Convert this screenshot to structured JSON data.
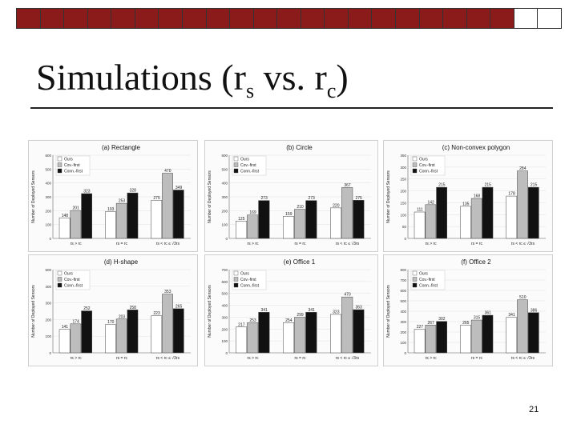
{
  "slide": {
    "title_main": "Simulations (r",
    "title_sub1": "s",
    "title_mid": " vs. r",
    "title_sub2": "c",
    "title_end": ")",
    "page_number": "21"
  },
  "colors": {
    "bar_dark": "#8b1a1a",
    "ours": "#ffffff",
    "cov": "#bdbdbd",
    "conn": "#111111"
  },
  "legend": [
    "Ours",
    "Cov.-first",
    "Conn.-first"
  ],
  "ylabel": "Number of Deployed Sensors",
  "chart_data": [
    {
      "type": "bar",
      "title": "(a) Rectangle",
      "categories": [
        "rs > rc",
        "rs = rc",
        "rs < rc ≤ √3rs"
      ],
      "ylim": [
        0,
        600
      ],
      "ticks": [
        0,
        100,
        200,
        300,
        400,
        500,
        600
      ],
      "series": [
        {
          "name": "Ours",
          "values": [
            148,
            193,
            275
          ]
        },
        {
          "name": "Cov.-first",
          "values": [
            201,
            253,
            470
          ]
        },
        {
          "name": "Conn.-first",
          "values": [
            323,
            328,
            349
          ]
        }
      ]
    },
    {
      "type": "bar",
      "title": "(b) Circle",
      "categories": [
        "rs > rc",
        "rs = rc",
        "rs < rc ≤ √3rs"
      ],
      "ylim": [
        0,
        600
      ],
      "ticks": [
        0,
        100,
        200,
        300,
        400,
        500,
        600
      ],
      "series": [
        {
          "name": "Ours",
          "values": [
            125,
            159,
            220
          ]
        },
        {
          "name": "Cov.-first",
          "values": [
            169,
            210,
            367
          ]
        },
        {
          "name": "Conn.-first",
          "values": [
            273,
            273,
            275
          ]
        }
      ]
    },
    {
      "type": "bar",
      "title": "(c) Non-convex polygon",
      "categories": [
        "rs > rc",
        "rs = rc",
        "rs < rc ≤ √3rs"
      ],
      "ylim": [
        0,
        350
      ],
      "ticks": [
        0,
        50,
        100,
        150,
        200,
        250,
        300,
        350
      ],
      "series": [
        {
          "name": "Ours",
          "values": [
            111,
            135,
            178
          ]
        },
        {
          "name": "Cov.-first",
          "values": [
            142,
            168,
            284
          ]
        },
        {
          "name": "Conn.-first",
          "values": [
            215,
            215,
            215
          ]
        }
      ]
    },
    {
      "type": "bar",
      "title": "(d) H-shape",
      "categories": [
        "rs > rc",
        "rs = rc",
        "rs < rc ≤ √3rs"
      ],
      "ylim": [
        0,
        500
      ],
      "ticks": [
        0,
        100,
        200,
        300,
        400,
        500
      ],
      "series": [
        {
          "name": "Ours",
          "values": [
            141,
            170,
            223
          ]
        },
        {
          "name": "Cov.-first",
          "values": [
            174,
            203,
            353
          ]
        },
        {
          "name": "Conn.-first",
          "values": [
            252,
            258,
            265
          ]
        }
      ]
    },
    {
      "type": "bar",
      "title": "(e) Office 1",
      "categories": [
        "rs > rc",
        "rs = rc",
        "rs < rc ≤ √3rs"
      ],
      "ylim": [
        0,
        700
      ],
      "ticks": [
        0,
        100,
        200,
        300,
        400,
        500,
        600,
        700
      ],
      "series": [
        {
          "name": "Ours",
          "values": [
            217,
            254,
            323
          ]
        },
        {
          "name": "Cov.-first",
          "values": [
            253,
            299,
            470
          ]
        },
        {
          "name": "Conn.-first",
          "values": [
            341,
            341,
            363
          ]
        }
      ]
    },
    {
      "type": "bar",
      "title": "(f) Office 2",
      "categories": [
        "rs > rc",
        "rs = rc",
        "rs < rc ≤ √3rs"
      ],
      "ylim": [
        0,
        800
      ],
      "ticks": [
        0,
        100,
        200,
        300,
        400,
        500,
        600,
        700,
        800
      ],
      "series": [
        {
          "name": "Ours",
          "values": [
            227,
            265,
            341
          ]
        },
        {
          "name": "Cov.-first",
          "values": [
            267,
            315,
            510
          ]
        },
        {
          "name": "Conn.-first",
          "values": [
            302,
            361,
            386
          ]
        }
      ]
    }
  ]
}
